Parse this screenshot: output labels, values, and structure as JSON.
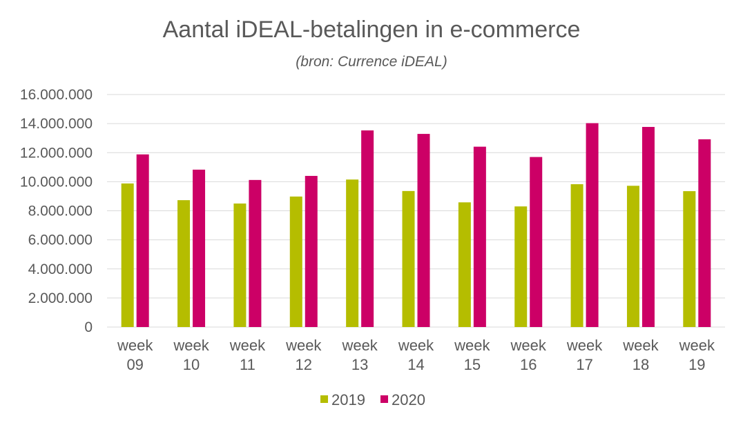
{
  "chart_data": {
    "type": "bar",
    "title": "Aantal iDEAL-betalingen in e-commerce",
    "subtitle": "(bron: Currence iDEAL)",
    "categories": [
      [
        "week",
        "09"
      ],
      [
        "week",
        "10"
      ],
      [
        "week",
        "11"
      ],
      [
        "week",
        "12"
      ],
      [
        "week",
        "13"
      ],
      [
        "week",
        "14"
      ],
      [
        "week",
        "15"
      ],
      [
        "week",
        "16"
      ],
      [
        "week",
        "17"
      ],
      [
        "week",
        "18"
      ],
      [
        "week",
        "19"
      ]
    ],
    "series": [
      {
        "name": "2019",
        "color": "#b5bd00",
        "values": [
          9880000,
          8730000,
          8500000,
          8980000,
          10150000,
          9360000,
          8580000,
          8300000,
          9830000,
          9720000,
          9350000
        ]
      },
      {
        "name": "2020",
        "color": "#cc0066",
        "values": [
          11880000,
          10830000,
          10120000,
          10400000,
          13530000,
          13290000,
          12410000,
          11700000,
          14030000,
          13770000,
          12920000
        ]
      }
    ],
    "ylim": [
      0,
      16000000
    ],
    "yticks": [
      0,
      2000000,
      4000000,
      6000000,
      8000000,
      10000000,
      12000000,
      14000000,
      16000000
    ],
    "ytick_labels": [
      "0",
      "2.000.000",
      "4.000.000",
      "6.000.000",
      "8.000.000",
      "10.000.000",
      "12.000.000",
      "14.000.000",
      "16.000.000"
    ],
    "grid": true,
    "legend_position": "bottom"
  }
}
